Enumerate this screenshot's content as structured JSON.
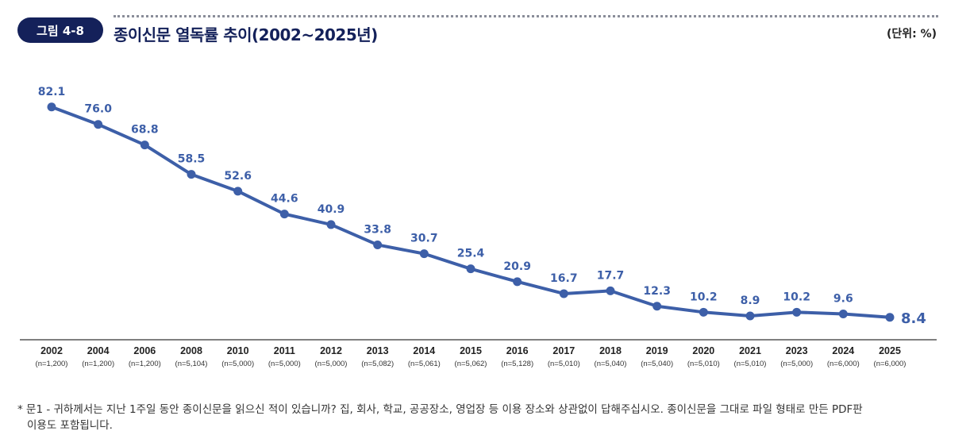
{
  "header": {
    "badge": "그림 4-8",
    "title": "종이신문 열독률 추이(2002~2025년)",
    "unit": "(단위: %)"
  },
  "chart_data": {
    "type": "line",
    "title": "종이신문 열독률 추이(2002~2025년)",
    "unit": "(단위: %)",
    "categories": [
      "2002",
      "2004",
      "2006",
      "2008",
      "2010",
      "2011",
      "2012",
      "2013",
      "2014",
      "2015",
      "2016",
      "2017",
      "2018",
      "2019",
      "2020",
      "2021",
      "2023",
      "2024",
      "2025"
    ],
    "sample_sizes": [
      "(n=1,200)",
      "(n=1,200)",
      "(n=1,200)",
      "(n=5,104)",
      "(n=5,000)",
      "(n=5,000)",
      "(n=5,000)",
      "(n=5,082)",
      "(n=5,061)",
      "(n=5,062)",
      "(n=5,128)",
      "(n=5,010)",
      "(n=5,040)",
      "(n=5,040)",
      "(n=5,010)",
      "(n=5,010)",
      "(n=5,000)",
      "(n=6,000)",
      "(n=6,000)"
    ],
    "values": [
      82.1,
      76.0,
      68.8,
      58.5,
      52.6,
      44.6,
      40.9,
      33.8,
      30.7,
      25.4,
      20.9,
      16.7,
      17.7,
      12.3,
      10.2,
      8.9,
      10.2,
      9.6,
      8.4
    ],
    "labels": [
      "82.1",
      "76.0",
      "68.8",
      "58.5",
      "52.6",
      "44.6",
      "40.9",
      "33.8",
      "30.7",
      "25.4",
      "20.9",
      "16.7",
      "17.7",
      "12.3",
      "10.2",
      "8.9",
      "10.2",
      "9.6",
      "8.4"
    ],
    "ylim": [
      0,
      90
    ],
    "grid": false,
    "color": "#3d5fa8"
  },
  "footnote": {
    "line1": "* 문1 - 귀하께서는 지난 1주일 동안 종이신문을 읽으신 적이 있습니까? 집, 회사, 학교, 공공장소, 영업장 등 이용 장소와 상관없이 답해주십시오. 종이신문을 그대로 파일 형태로 만든 PDF판",
    "line2": "이용도 포함됩니다."
  }
}
